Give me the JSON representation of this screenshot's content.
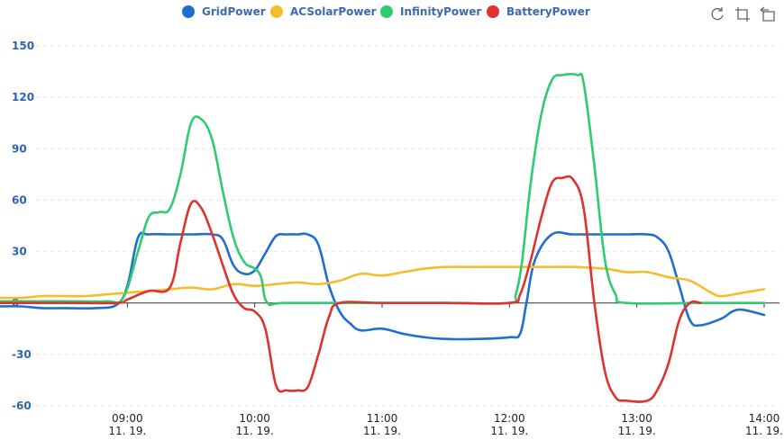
{
  "toolbox": {
    "restore_icon": "restore-icon",
    "zoom_icon": "data-zoom-icon",
    "zoom_reset_icon": "zoom-reset-icon"
  },
  "colors": {
    "GridPower": "#1f6fd0",
    "ACSolarPower": "#f5bd2e",
    "InfinityPower": "#2ecc71",
    "BatteryPower": "#e03131",
    "axis_label": "#2b64b5",
    "grid": "#e6e6e6"
  },
  "chart_data": {
    "type": "line",
    "title": "",
    "xlabel": "",
    "ylabel": "",
    "ylim": [
      -60,
      150
    ],
    "yticks": [
      -60,
      -30,
      0,
      30,
      60,
      90,
      120,
      150
    ],
    "xlim": [
      "08:00",
      "14:00"
    ],
    "xticks": [
      {
        "time": "09:00",
        "date": "11. 19."
      },
      {
        "time": "10:00",
        "date": "11. 19."
      },
      {
        "time": "11:00",
        "date": "11. 19."
      },
      {
        "time": "12:00",
        "date": "11. 19."
      },
      {
        "time": "13:00",
        "date": "11. 19."
      },
      {
        "time": "14:00",
        "date": "11. 19."
      }
    ],
    "legend_position": "top-center",
    "grid": true,
    "series": [
      {
        "name": "GridPower",
        "points": [
          [
            "08:00",
            -2
          ],
          [
            "08:10",
            -2
          ],
          [
            "08:20",
            -3
          ],
          [
            "08:30",
            -3
          ],
          [
            "08:45",
            -3
          ],
          [
            "08:55",
            -1
          ],
          [
            "09:00",
            10
          ],
          [
            "09:05",
            38
          ],
          [
            "09:10",
            40
          ],
          [
            "09:20",
            40
          ],
          [
            "09:30",
            40
          ],
          [
            "09:40",
            40
          ],
          [
            "09:45",
            37
          ],
          [
            "09:50",
            22
          ],
          [
            "09:55",
            17
          ],
          [
            "10:00",
            19
          ],
          [
            "10:05",
            29
          ],
          [
            "10:10",
            39
          ],
          [
            "10:15",
            40
          ],
          [
            "10:20",
            40
          ],
          [
            "10:25",
            40
          ],
          [
            "10:30",
            34
          ],
          [
            "10:35",
            10
          ],
          [
            "10:40",
            -5
          ],
          [
            "10:45",
            -12
          ],
          [
            "10:50",
            -16
          ],
          [
            "11:00",
            -15
          ],
          [
            "11:10",
            -18
          ],
          [
            "11:20",
            -20
          ],
          [
            "11:30",
            -21
          ],
          [
            "11:45",
            -21
          ],
          [
            "12:00",
            -20
          ],
          [
            "12:05",
            -18
          ],
          [
            "12:08",
            0
          ],
          [
            "12:12",
            25
          ],
          [
            "12:20",
            40
          ],
          [
            "12:30",
            40
          ],
          [
            "12:45",
            40
          ],
          [
            "12:55",
            40
          ],
          [
            "13:05",
            40
          ],
          [
            "13:10",
            38
          ],
          [
            "13:15",
            30
          ],
          [
            "13:20",
            10
          ],
          [
            "13:25",
            -10
          ],
          [
            "13:30",
            -13
          ],
          [
            "13:40",
            -9
          ],
          [
            "13:45",
            -5
          ],
          [
            "13:50",
            -4
          ],
          [
            "14:00",
            -7
          ]
        ]
      },
      {
        "name": "ACSolarPower",
        "points": [
          [
            "08:00",
            3
          ],
          [
            "08:10",
            3
          ],
          [
            "08:20",
            4
          ],
          [
            "08:30",
            4
          ],
          [
            "08:40",
            4
          ],
          [
            "08:50",
            5
          ],
          [
            "09:00",
            6
          ],
          [
            "09:10",
            7
          ],
          [
            "09:20",
            8
          ],
          [
            "09:30",
            9
          ],
          [
            "09:40",
            8
          ],
          [
            "09:50",
            11
          ],
          [
            "10:00",
            10
          ],
          [
            "10:10",
            11
          ],
          [
            "10:20",
            12
          ],
          [
            "10:30",
            11
          ],
          [
            "10:40",
            13
          ],
          [
            "10:50",
            17
          ],
          [
            "11:00",
            16
          ],
          [
            "11:10",
            18
          ],
          [
            "11:20",
            20
          ],
          [
            "11:30",
            21
          ],
          [
            "11:45",
            21
          ],
          [
            "12:00",
            21
          ],
          [
            "12:15",
            21
          ],
          [
            "12:30",
            21
          ],
          [
            "12:45",
            20
          ],
          [
            "12:55",
            18
          ],
          [
            "13:05",
            18
          ],
          [
            "13:15",
            15
          ],
          [
            "13:25",
            13
          ],
          [
            "13:35",
            6
          ],
          [
            "13:40",
            4
          ],
          [
            "13:50",
            6
          ],
          [
            "14:00",
            8
          ]
        ]
      },
      {
        "name": "InfinityPower",
        "points": [
          [
            "08:00",
            1
          ],
          [
            "08:30",
            1
          ],
          [
            "08:50",
            1
          ],
          [
            "08:58",
            3
          ],
          [
            "09:05",
            30
          ],
          [
            "09:10",
            50
          ],
          [
            "09:15",
            53
          ],
          [
            "09:20",
            55
          ],
          [
            "09:25",
            75
          ],
          [
            "09:30",
            105
          ],
          [
            "09:35",
            107
          ],
          [
            "09:40",
            95
          ],
          [
            "09:45",
            65
          ],
          [
            "09:50",
            38
          ],
          [
            "09:55",
            24
          ],
          [
            "10:00",
            20
          ],
          [
            "10:03",
            15
          ],
          [
            "10:06",
            0
          ],
          [
            "10:15",
            0
          ],
          [
            "11:00",
            0
          ],
          [
            "11:30",
            0
          ],
          [
            "12:00",
            0
          ],
          [
            "12:03",
            5
          ],
          [
            "12:06",
            25
          ],
          [
            "12:10",
            70
          ],
          [
            "12:15",
            110
          ],
          [
            "12:20",
            130
          ],
          [
            "12:25",
            133
          ],
          [
            "12:32",
            133
          ],
          [
            "12:35",
            128
          ],
          [
            "12:40",
            80
          ],
          [
            "12:45",
            25
          ],
          [
            "12:50",
            5
          ],
          [
            "12:55",
            0
          ],
          [
            "13:30",
            0
          ],
          [
            "14:00",
            0
          ]
        ]
      },
      {
        "name": "BatteryPower",
        "points": [
          [
            "08:00",
            0
          ],
          [
            "08:30",
            0
          ],
          [
            "08:55",
            0
          ],
          [
            "09:00",
            2
          ],
          [
            "09:10",
            7
          ],
          [
            "09:20",
            9
          ],
          [
            "09:25",
            35
          ],
          [
            "09:30",
            58
          ],
          [
            "09:35",
            55
          ],
          [
            "09:40",
            40
          ],
          [
            "09:45",
            22
          ],
          [
            "09:50",
            5
          ],
          [
            "09:55",
            -3
          ],
          [
            "10:00",
            -5
          ],
          [
            "10:05",
            -15
          ],
          [
            "10:10",
            -48
          ],
          [
            "10:15",
            -51
          ],
          [
            "10:20",
            -51
          ],
          [
            "10:25",
            -49
          ],
          [
            "10:30",
            -30
          ],
          [
            "10:35",
            -8
          ],
          [
            "10:40",
            0
          ],
          [
            "11:00",
            0
          ],
          [
            "11:30",
            0
          ],
          [
            "12:00",
            0
          ],
          [
            "12:05",
            5
          ],
          [
            "12:10",
            25
          ],
          [
            "12:15",
            50
          ],
          [
            "12:20",
            70
          ],
          [
            "12:25",
            73
          ],
          [
            "12:30",
            72
          ],
          [
            "12:35",
            55
          ],
          [
            "12:40",
            0
          ],
          [
            "12:45",
            -40
          ],
          [
            "12:50",
            -55
          ],
          [
            "12:55",
            -57
          ],
          [
            "13:05",
            -57
          ],
          [
            "13:10",
            -50
          ],
          [
            "13:15",
            -35
          ],
          [
            "13:20",
            -10
          ],
          [
            "13:25",
            0
          ],
          [
            "13:30",
            0
          ]
        ]
      }
    ]
  }
}
